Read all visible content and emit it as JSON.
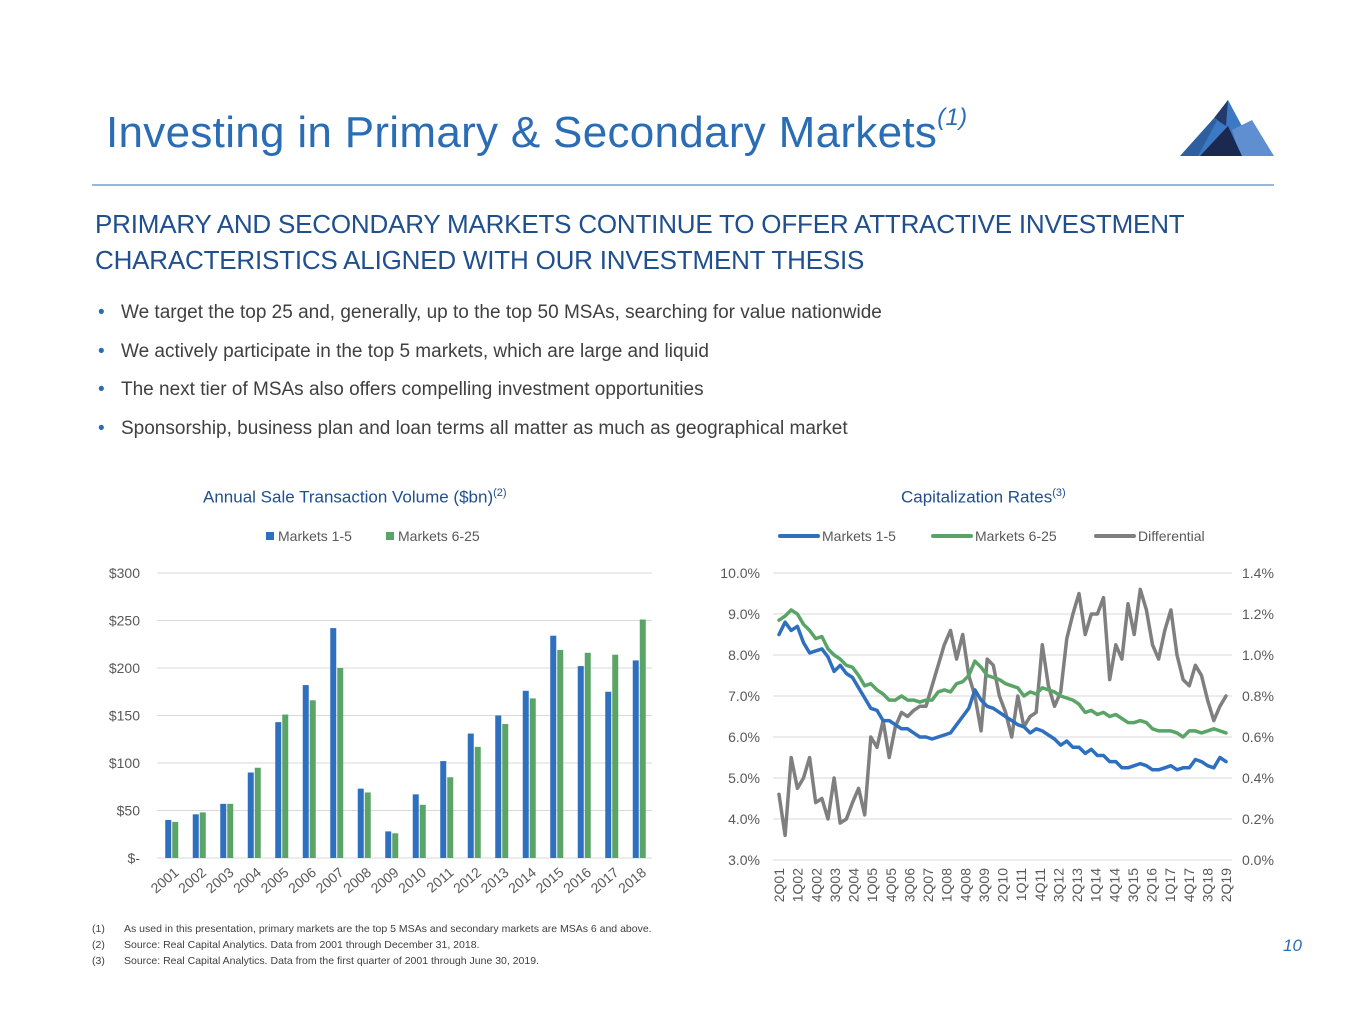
{
  "page": {
    "title": "Investing in Primary & Secondary Markets",
    "title_footnote": "(1)",
    "subheading": "PRIMARY AND SECONDARY MARKETS CONTINUE TO OFFER ATTRACTIVE INVESTMENT CHARACTERISTICS ALIGNED WITH OUR INVESTMENT THESIS",
    "bullets": [
      "We target the top 25 and, generally, up to the top 50 MSAs, searching for value nationwide",
      "We actively participate in the top 5 markets, which are large and liquid",
      "The next tier of MSAs also offers compelling investment opportunities",
      "Sponsorship, business plan and loan terms all matter as much as geographical market"
    ],
    "footnotes": [
      {
        "num": "(1)",
        "text": "As used in this presentation, primary markets are the top 5 MSAs and secondary markets are MSAs 6 and above."
      },
      {
        "num": "(2)",
        "text": "Source: Real Capital Analytics. Data from 2001 through December 31, 2018."
      },
      {
        "num": "(3)",
        "text": "Source: Real Capital Analytics. Data from the first quarter of 2001 through June 30, 2019."
      }
    ],
    "page_number": "10"
  },
  "colors": {
    "markets_1_5": "#2e6fbf",
    "markets_6_25": "#5ba467",
    "differential": "#7f7f7f",
    "title": "#2a6db5",
    "subhead": "#1f4f8e"
  },
  "chart_data": [
    {
      "type": "bar",
      "title": "Annual Sale Transaction Volume ($bn)",
      "title_footnote": "(2)",
      "categories": [
        "2001",
        "2002",
        "2003",
        "2004",
        "2005",
        "2006",
        "2007",
        "2008",
        "2009",
        "2010",
        "2011",
        "2012",
        "2013",
        "2014",
        "2015",
        "2016",
        "2017",
        "2018"
      ],
      "series": [
        {
          "name": "Markets 1-5",
          "values": [
            40,
            46,
            57,
            90,
            143,
            182,
            242,
            73,
            28,
            67,
            102,
            131,
            150,
            176,
            234,
            202,
            175,
            208
          ]
        },
        {
          "name": "Markets 6-25",
          "values": [
            38,
            48,
            57,
            95,
            151,
            166,
            200,
            69,
            26,
            56,
            85,
            117,
            141,
            168,
            219,
            216,
            214,
            251
          ]
        }
      ],
      "ylim": [
        0,
        300
      ],
      "yticks": [
        0,
        50,
        100,
        150,
        200,
        250,
        300
      ],
      "ytick_labels": [
        "$-",
        "$50",
        "$100",
        "$150",
        "$200",
        "$250",
        "$300"
      ],
      "legend": "top"
    },
    {
      "type": "line",
      "title": "Capitalization Rates",
      "title_footnote": "(3)",
      "x_count": 74,
      "x_tick_labels": [
        "2Q01",
        "1Q02",
        "4Q02",
        "3Q03",
        "2Q04",
        "1Q05",
        "4Q05",
        "3Q06",
        "2Q07",
        "1Q08",
        "4Q08",
        "3Q09",
        "2Q10",
        "1Q11",
        "4Q11",
        "3Q12",
        "2Q13",
        "1Q14",
        "4Q14",
        "3Q15",
        "2Q16",
        "1Q17",
        "4Q17",
        "3Q18",
        "2Q19"
      ],
      "y_left": {
        "ylim": [
          3.0,
          10.0
        ],
        "tick_labels": [
          "3.0%",
          "4.0%",
          "5.0%",
          "6.0%",
          "7.0%",
          "8.0%",
          "9.0%",
          "10.0%"
        ]
      },
      "y_right": {
        "ylim": [
          0.0,
          1.4
        ],
        "tick_labels": [
          "0.0%",
          "0.2%",
          "0.4%",
          "0.6%",
          "0.8%",
          "1.0%",
          "1.2%",
          "1.4%"
        ]
      },
      "series": [
        {
          "name": "Markets 1-5",
          "axis": "left",
          "values": [
            8.5,
            8.8,
            8.6,
            8.7,
            8.3,
            8.05,
            8.1,
            8.15,
            7.95,
            7.6,
            7.75,
            7.55,
            7.45,
            7.2,
            6.95,
            6.7,
            6.65,
            6.4,
            6.4,
            6.3,
            6.2,
            6.2,
            6.1,
            6.0,
            6.0,
            5.95,
            6.0,
            6.05,
            6.1,
            6.3,
            6.5,
            6.7,
            7.15,
            6.9,
            6.75,
            6.7,
            6.6,
            6.5,
            6.4,
            6.3,
            6.25,
            6.1,
            6.2,
            6.15,
            6.05,
            5.95,
            5.8,
            5.9,
            5.75,
            5.75,
            5.6,
            5.7,
            5.55,
            5.55,
            5.4,
            5.4,
            5.25,
            5.25,
            5.3,
            5.35,
            5.3,
            5.2,
            5.2,
            5.25,
            5.3,
            5.2,
            5.25,
            5.25,
            5.45,
            5.4,
            5.3,
            5.25,
            5.5,
            5.4
          ]
        },
        {
          "name": "Markets 6-25",
          "axis": "left",
          "values": [
            8.85,
            8.95,
            9.1,
            9.0,
            8.75,
            8.6,
            8.4,
            8.45,
            8.15,
            8.0,
            7.9,
            7.75,
            7.7,
            7.5,
            7.25,
            7.3,
            7.15,
            7.05,
            6.9,
            6.9,
            7.0,
            6.9,
            6.9,
            6.85,
            6.9,
            6.9,
            7.1,
            7.15,
            7.1,
            7.3,
            7.35,
            7.5,
            7.85,
            7.7,
            7.5,
            7.45,
            7.4,
            7.3,
            7.25,
            7.2,
            7.0,
            7.1,
            7.05,
            7.2,
            7.15,
            7.1,
            7.0,
            6.95,
            6.9,
            6.8,
            6.6,
            6.65,
            6.55,
            6.6,
            6.5,
            6.55,
            6.45,
            6.35,
            6.35,
            6.4,
            6.35,
            6.2,
            6.15,
            6.15,
            6.15,
            6.1,
            6.0,
            6.15,
            6.15,
            6.1,
            6.15,
            6.2,
            6.15,
            6.1
          ]
        },
        {
          "name": "Differential",
          "axis": "right",
          "values": [
            0.32,
            0.12,
            0.5,
            0.35,
            0.4,
            0.5,
            0.28,
            0.3,
            0.2,
            0.4,
            0.18,
            0.2,
            0.28,
            0.35,
            0.22,
            0.6,
            0.55,
            0.68,
            0.5,
            0.65,
            0.72,
            0.7,
            0.73,
            0.75,
            0.75,
            0.85,
            0.95,
            1.05,
            1.12,
            0.98,
            1.1,
            0.9,
            0.8,
            0.63,
            0.98,
            0.95,
            0.8,
            0.72,
            0.6,
            0.8,
            0.65,
            0.7,
            0.72,
            1.05,
            0.85,
            0.75,
            0.82,
            1.08,
            1.2,
            1.3,
            1.1,
            1.2,
            1.2,
            1.28,
            0.88,
            1.05,
            0.98,
            1.25,
            1.1,
            1.32,
            1.22,
            1.05,
            0.98,
            1.12,
            1.22,
            1.0,
            0.88,
            0.85,
            0.95,
            0.9,
            0.78,
            0.68,
            0.75,
            0.8
          ]
        }
      ],
      "legend": "top"
    }
  ]
}
